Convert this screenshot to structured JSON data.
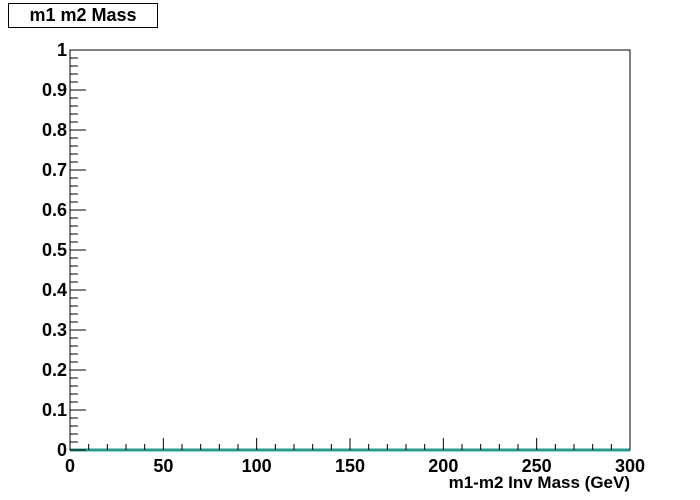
{
  "title": "m1 m2 Mass",
  "colors": {
    "axis": "#000000",
    "series": "#2a9a8e"
  },
  "chart_data": {
    "type": "area",
    "title": "m1 m2 Mass",
    "xlabel": "m1-m2 Inv Mass (GeV)",
    "ylabel": "",
    "xlim": [
      0,
      300
    ],
    "ylim": [
      0,
      1
    ],
    "x_major_ticks": [
      0,
      50,
      100,
      150,
      200,
      250,
      300
    ],
    "x_tick_labels": [
      "0",
      "50",
      "100",
      "150",
      "200",
      "250",
      "300"
    ],
    "y_major_ticks": [
      0,
      0.1,
      0.2,
      0.3,
      0.4,
      0.5,
      0.6,
      0.7,
      0.8,
      0.9,
      1
    ],
    "y_tick_labels": [
      "0",
      "0.1",
      "0.2",
      "0.3",
      "0.4",
      "0.5",
      "0.6",
      "0.7",
      "0.8",
      "0.9",
      "1"
    ],
    "grid": false,
    "legend": "none",
    "series": [
      {
        "x": [
          0,
          300
        ],
        "values": [
          0,
          0
        ]
      }
    ]
  }
}
